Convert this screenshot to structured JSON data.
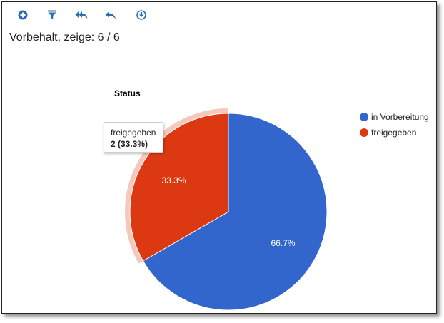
{
  "header": {
    "title": "Vorbehalt, zeige: 6 / 6"
  },
  "toolbar": {
    "items": [
      {
        "icon": "add-circle-icon"
      },
      {
        "icon": "filter-icon"
      },
      {
        "icon": "reply-all-icon"
      },
      {
        "icon": "reply-icon"
      },
      {
        "icon": "download-circle-icon"
      }
    ],
    "icon_color": "#2f6fb0"
  },
  "tooltip": {
    "label": "freigegeben",
    "value": "2 (33.3%)"
  },
  "chart_data": {
    "type": "pie",
    "title": "Status",
    "legend_position": "right",
    "slices": [
      {
        "name": "in Vorbereitung",
        "value": 4,
        "label": "66.7%",
        "color": "#3366cc"
      },
      {
        "name": "freigegeben",
        "value": 2,
        "label": "33.3%",
        "color": "#dc3912"
      }
    ],
    "highlighted": "freigegeben"
  }
}
